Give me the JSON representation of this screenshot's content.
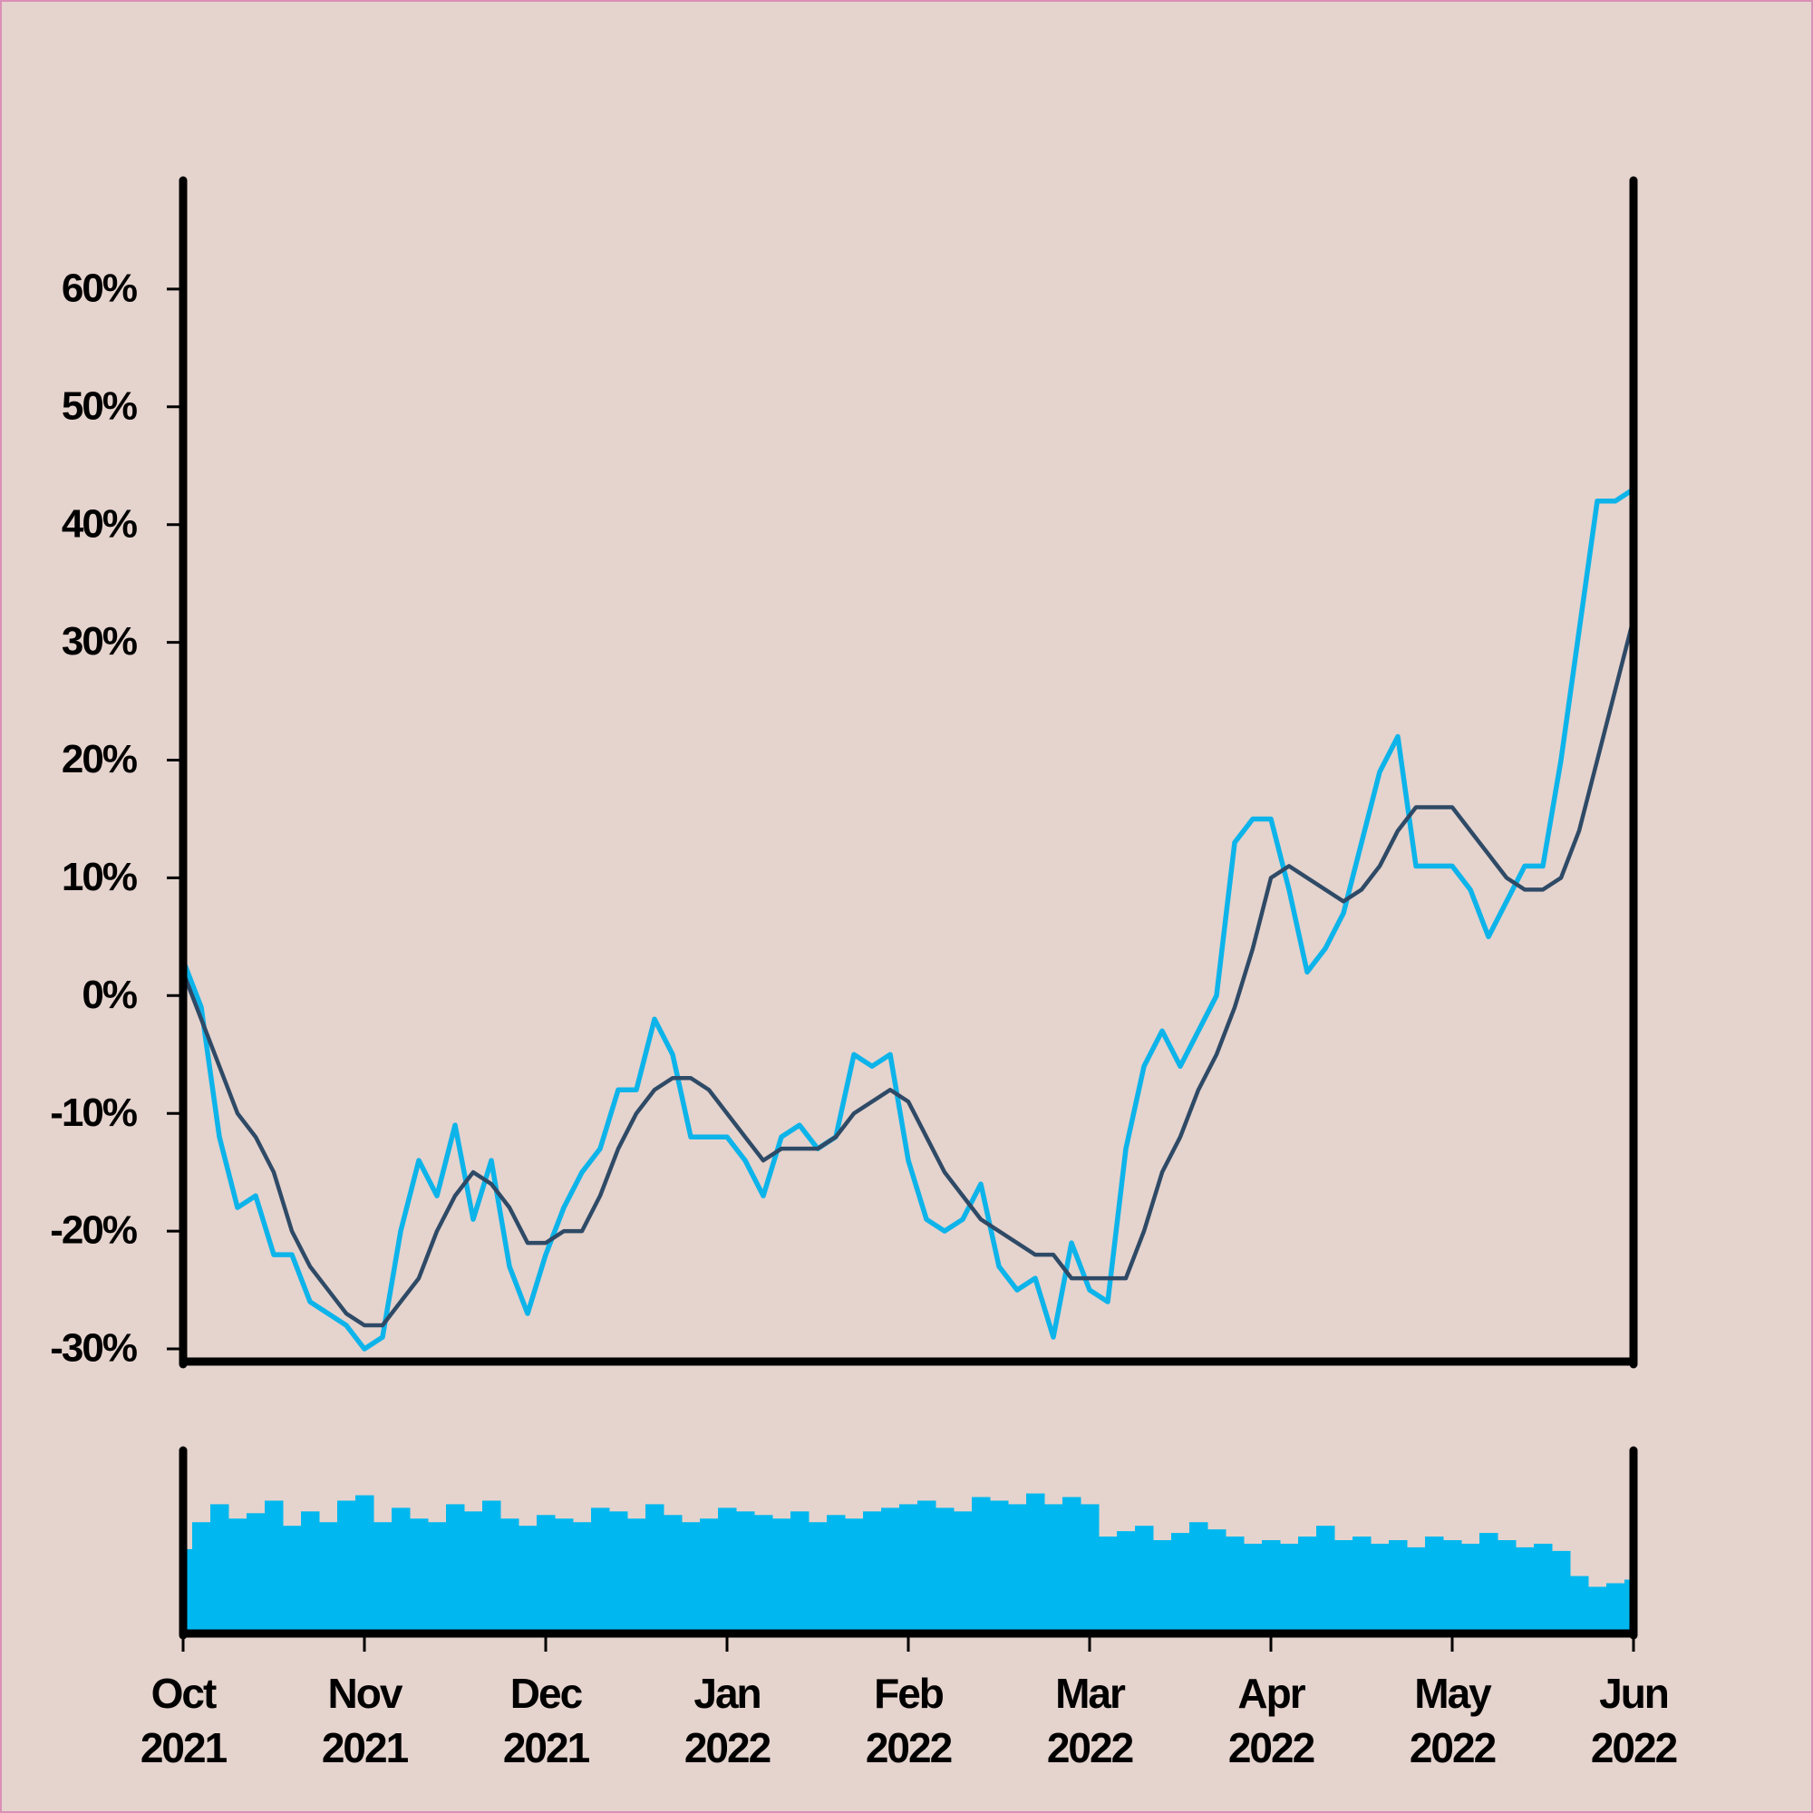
{
  "chart_data": {
    "type": "line",
    "categories": [
      "Oct 2021",
      null,
      null,
      null,
      null,
      null,
      null,
      null,
      null,
      null,
      "Nov 2021",
      null,
      null,
      null,
      null,
      null,
      null,
      null,
      null,
      null,
      "Dec 2021",
      null,
      null,
      null,
      null,
      null,
      null,
      null,
      null,
      null,
      "Jan 2022",
      null,
      null,
      null,
      null,
      null,
      null,
      null,
      null,
      null,
      "Feb 2022",
      null,
      null,
      null,
      null,
      null,
      null,
      null,
      null,
      null,
      "Mar 2022",
      null,
      null,
      null,
      null,
      null,
      null,
      null,
      null,
      null,
      "Apr 2022",
      null,
      null,
      null,
      null,
      null,
      null,
      null,
      null,
      null,
      "May 2022",
      null,
      null,
      null,
      null,
      null,
      null,
      null,
      null,
      null,
      "Jun 2022"
    ],
    "series": [
      {
        "color": "#0db4ea",
        "values": [
          3,
          -1,
          -12,
          -18,
          -17,
          -22,
          -22,
          -26,
          -27,
          -28,
          -30,
          -29,
          -20,
          -14,
          -17,
          -11,
          -19,
          -14,
          -23,
          -27,
          -22,
          -18,
          -15,
          -13,
          -8,
          -8,
          -2,
          -5,
          -12,
          -12,
          -12,
          -14,
          -17,
          -12,
          -11,
          -13,
          -12,
          -5,
          -6,
          -5,
          -14,
          -19,
          -20,
          -19,
          -16,
          -23,
          -25,
          -24,
          -29,
          -21,
          -25,
          -26,
          -13,
          -6,
          -3,
          -6,
          -3,
          0,
          13,
          15,
          15,
          9,
          2,
          4,
          7,
          13,
          19,
          22,
          11,
          11,
          11,
          9,
          5,
          8,
          11,
          11,
          20,
          31,
          42,
          42,
          43
        ]
      },
      {
        "color": "#2e4a66",
        "values": [
          2,
          -2,
          -6,
          -10,
          -12,
          -15,
          -20,
          -23,
          -25,
          -27,
          -28,
          -28,
          -26,
          -24,
          -20,
          -17,
          -15,
          -16,
          -18,
          -21,
          -21,
          -20,
          -20,
          -17,
          -13,
          -10,
          -8,
          -7,
          -7,
          -8,
          -10,
          -12,
          -14,
          -13,
          -13,
          -13,
          -12,
          -10,
          -9,
          -8,
          -9,
          -12,
          -15,
          -17,
          -19,
          -20,
          -21,
          -22,
          -22,
          -24,
          -24,
          -24,
          -24,
          -20,
          -15,
          -12,
          -8,
          -5,
          -1,
          4,
          10,
          11,
          10,
          9,
          8,
          9,
          11,
          14,
          16,
          16,
          16,
          14,
          12,
          10,
          9,
          9,
          10,
          14,
          20,
          26,
          32
        ]
      },
      {
        "type": "bar",
        "axis": "y2",
        "color": "#00b8ef",
        "values": [
          45,
          60,
          70,
          62,
          65,
          72,
          58,
          66,
          60,
          72,
          75,
          60,
          68,
          62,
          60,
          70,
          66,
          72,
          62,
          58,
          64,
          62,
          60,
          68,
          66,
          62,
          70,
          64,
          60,
          62,
          68,
          66,
          64,
          62,
          66,
          60,
          64,
          62,
          66,
          68,
          70,
          72,
          68,
          66,
          74,
          72,
          70,
          76,
          70,
          74,
          70,
          52,
          55,
          58,
          50,
          54,
          60,
          56,
          52,
          48,
          50,
          48,
          52,
          58,
          50,
          52,
          48,
          50,
          46,
          52,
          50,
          48,
          54,
          50,
          46,
          48,
          44,
          30,
          24,
          26,
          28
        ]
      }
    ],
    "ylim": [
      -31,
      69
    ],
    "yticks": [
      {
        "value": -30,
        "label": "-30%"
      },
      {
        "value": -20,
        "label": "-20%"
      },
      {
        "value": -10,
        "label": "-10%"
      },
      {
        "value": 0,
        "label": "0%"
      },
      {
        "value": 10,
        "label": "10%"
      },
      {
        "value": 20,
        "label": "20%"
      },
      {
        "value": 30,
        "label": "30%"
      },
      {
        "value": 40,
        "label": "40%"
      },
      {
        "value": 50,
        "label": "50%"
      },
      {
        "value": 60,
        "label": "60%"
      }
    ],
    "y2lim": [
      0,
      100
    ],
    "grid": false
  }
}
